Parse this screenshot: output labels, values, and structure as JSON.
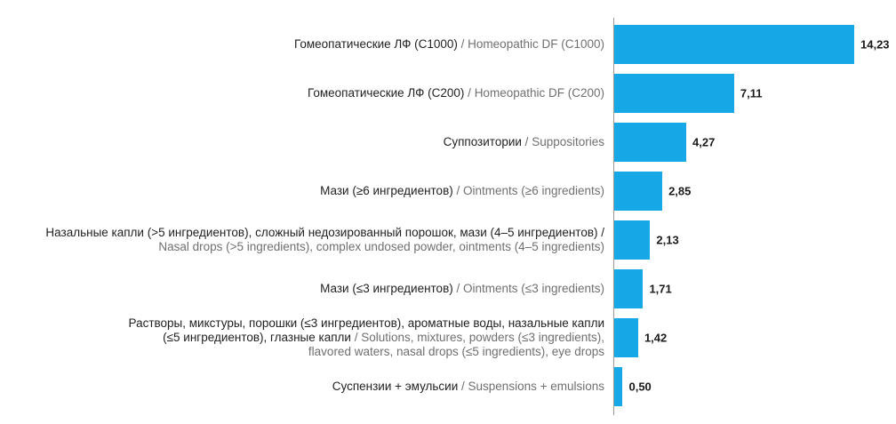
{
  "chart_data": {
    "type": "bar",
    "orientation": "horizontal",
    "bar_color": "#16a7e7",
    "categories": [
      {
        "lines": [
          {
            "ru": "Гомеопатические ЛФ (С1000)",
            "sep": " / ",
            "en": "Homeopathic DF (C1000)"
          }
        ]
      },
      {
        "lines": [
          {
            "ru": "Гомеопатические ЛФ (С200)",
            "sep": " / ",
            "en": "Homeopathic DF (C200)"
          }
        ]
      },
      {
        "lines": [
          {
            "ru": "Суппозитории",
            "sep": " / ",
            "en": "Suppositories"
          }
        ]
      },
      {
        "lines": [
          {
            "ru": "Мази (≥6 ингредиентов)",
            "sep": " / ",
            "en": "Ointments (≥6 ingredients)"
          }
        ]
      },
      {
        "lines": [
          {
            "ru": "Назальные капли (>5 ингредиентов), сложный недозированный порошок, мази (4–5 ингредиентов) /",
            "sep": "",
            "en": ""
          },
          {
            "ru": "",
            "sep": "",
            "en": "Nasal drops (>5 ingredients), complex undosed powder, ointments (4–5 ingredients)"
          }
        ]
      },
      {
        "lines": [
          {
            "ru": "Мази (≤3 ингредиентов)",
            "sep": " / ",
            "en": "Ointments (≤3 ingredients)"
          }
        ]
      },
      {
        "lines": [
          {
            "ru": "Растворы, микстуры, порошки (≤3 ингредиентов), ароматные воды, назальные капли",
            "sep": "",
            "en": ""
          },
          {
            "ru": "(≤5 ингредиентов), глазные капли",
            "sep": " / ",
            "en": "Solutions, mixtures, powders (≤3 ingredients),"
          },
          {
            "ru": "",
            "sep": "",
            "en": "flavored waters, nasal drops (≤5 ingredients), eye drops"
          }
        ]
      },
      {
        "lines": [
          {
            "ru": "Суспензии + эмульсии",
            "sep": " / ",
            "en": "Suspensions + emulsions"
          }
        ]
      }
    ],
    "values": [
      14.23,
      7.11,
      4.27,
      2.85,
      2.13,
      1.71,
      1.42,
      0.5
    ],
    "value_labels": [
      "14,23",
      "7,11",
      "4,27",
      "2,85",
      "2,13",
      "1,71",
      "1,42",
      "0,50"
    ],
    "xlim": [
      0,
      14.23
    ],
    "grid": false,
    "legend": "none"
  }
}
